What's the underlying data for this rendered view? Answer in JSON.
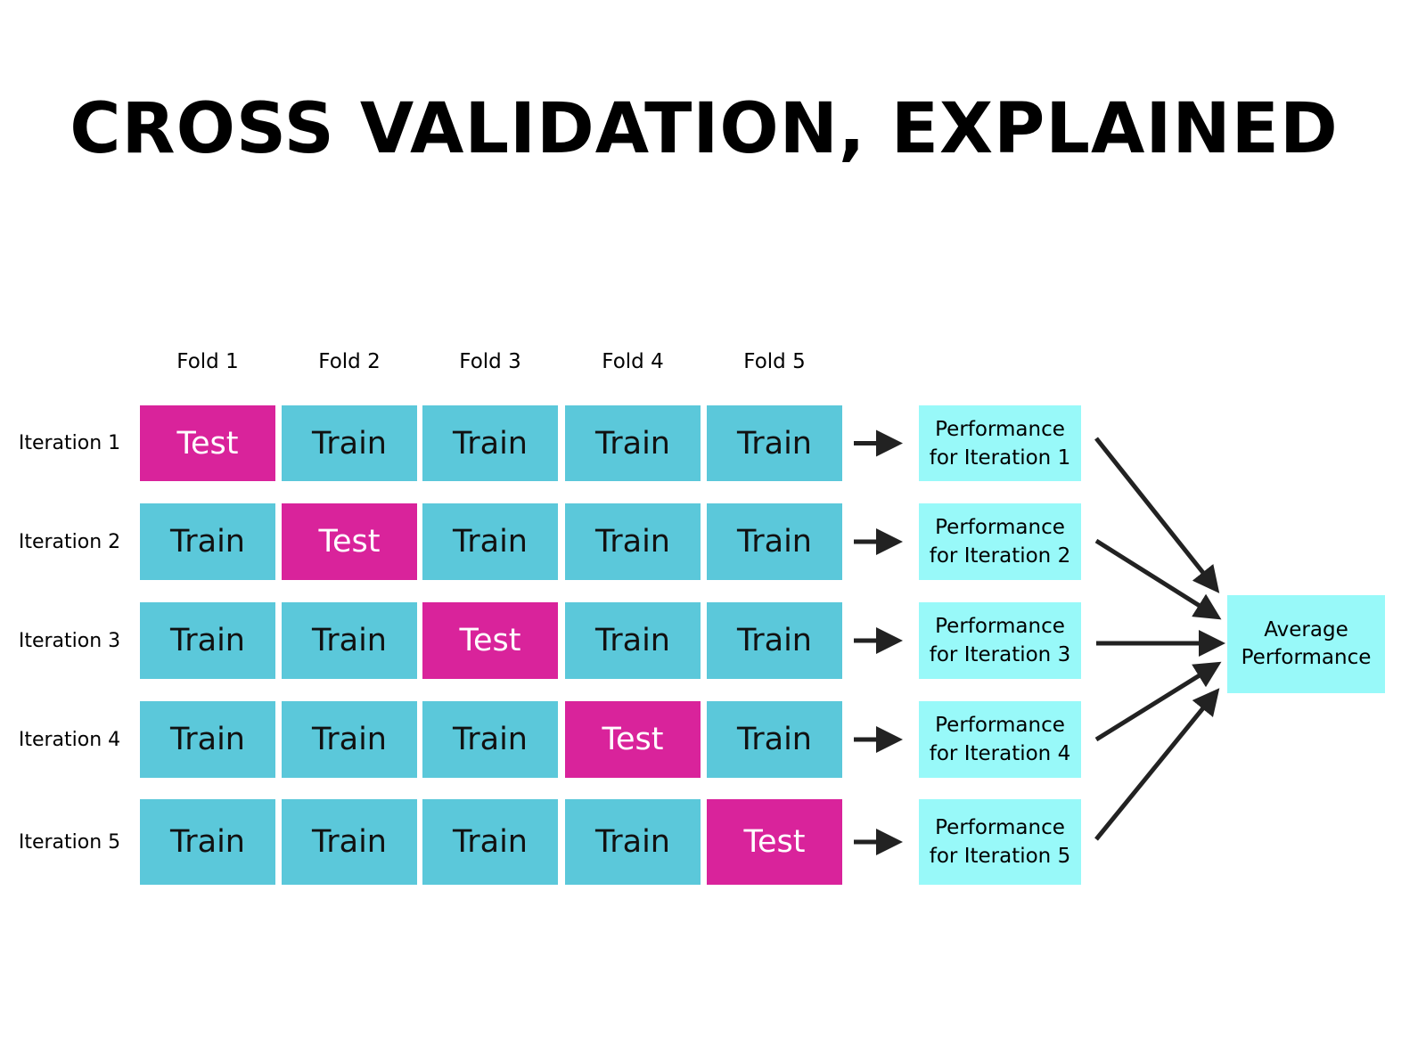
{
  "title": "CROSS VALIDATION, EXPLAINED",
  "folds": [
    "Fold 1",
    "Fold 2",
    "Fold 3",
    "Fold 4",
    "Fold 5"
  ],
  "iterations": [
    {
      "label": "Iteration 1",
      "cells": [
        {
          "text": "Test",
          "color": "#d9239b"
        },
        {
          "text": "Train",
          "color": "#5bc8da"
        },
        {
          "text": "Train",
          "color": "#5bc8da"
        },
        {
          "text": "Train",
          "color": "#5bc8da"
        },
        {
          "text": "Train",
          "color": "#5bc8da"
        }
      ],
      "performance": "Performance for Iteration 1"
    },
    {
      "label": "Iteration 2",
      "cells": [
        {
          "text": "Train",
          "color": "#5bc8da"
        },
        {
          "text": "Test",
          "color": "#d9239b"
        },
        {
          "text": "Train",
          "color": "#5bc8da"
        },
        {
          "text": "Train",
          "color": "#5bc8da"
        },
        {
          "text": "Train",
          "color": "#5bc8da"
        }
      ],
      "performance": "Performance for Iteration 2"
    },
    {
      "label": "Iteration 3",
      "cells": [
        {
          "text": "Train",
          "color": "#5bc8da"
        },
        {
          "text": "Train",
          "color": "#5bc8da"
        },
        {
          "text": "Test",
          "color": "#d9239b"
        },
        {
          "text": "Train",
          "color": "#5bc8da"
        },
        {
          "text": "Train",
          "color": "#5bc8da"
        }
      ],
      "performance": "Performance for Iteration 3"
    },
    {
      "label": "Iteration 4",
      "cells": [
        {
          "text": "Train",
          "color": "#5bc8da"
        },
        {
          "text": "Train",
          "color": "#5bc8da"
        },
        {
          "text": "Train",
          "color": "#5bc8da"
        },
        {
          "text": "Test",
          "color": "#d9239b"
        },
        {
          "text": "Train",
          "color": "#5bc8da"
        }
      ],
      "performance": "Performance for Iteration 4"
    },
    {
      "label": "Iteration 5",
      "cells": [
        {
          "text": "Train",
          "color": "#5bc8da"
        },
        {
          "text": "Train",
          "color": "#5bc8da"
        },
        {
          "text": "Train",
          "color": "#5bc8da"
        },
        {
          "text": "Train",
          "color": "#5bc8da"
        },
        {
          "text": "Test",
          "color": "#d9239b"
        }
      ],
      "performance": "Performance for Iteration 5"
    }
  ],
  "average": "Average Performance"
}
